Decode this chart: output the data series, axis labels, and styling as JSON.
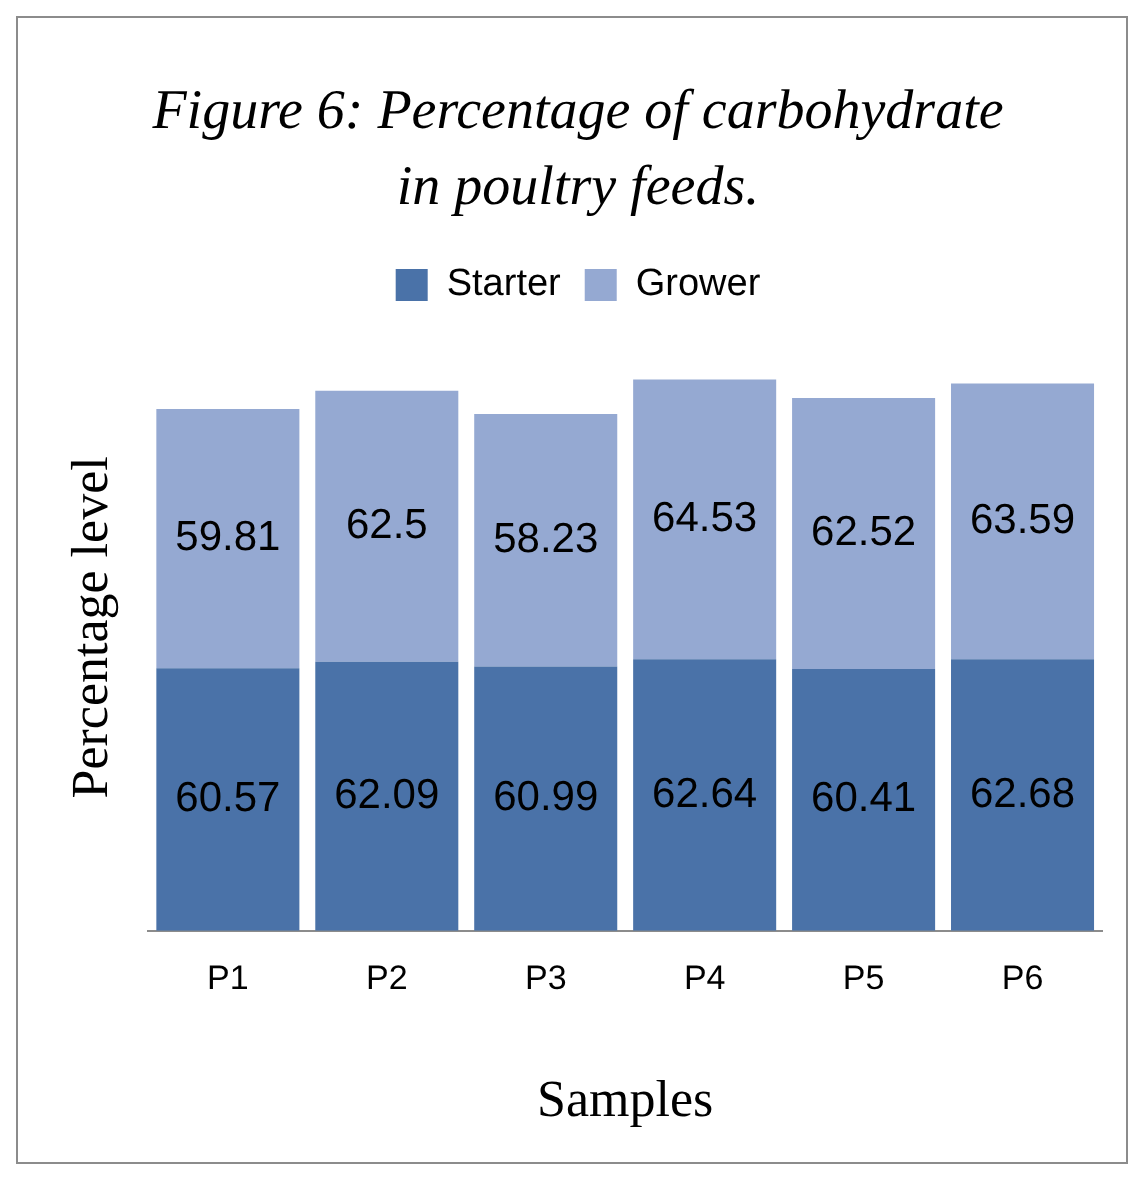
{
  "chart_data": {
    "type": "bar",
    "title": "Figure 6: Percentage of carbohydrate in poultry feeds.",
    "xlabel": "Samples",
    "ylabel": "Percentage level",
    "categories": [
      "P1",
      "P2",
      "P3",
      "P4",
      "P5",
      "P6"
    ],
    "stacked": true,
    "data_labels": true,
    "legend": "top",
    "grid": false,
    "tick_labels": "x",
    "series": [
      {
        "name": "Starter",
        "color": "#4a72a8",
        "values": [
          60.57,
          62.09,
          60.99,
          62.64,
          60.41,
          62.68
        ]
      },
      {
        "name": "Grower",
        "color": "#95a9d2",
        "values": [
          59.81,
          62.5,
          58.23,
          64.53,
          62.52,
          63.59
        ]
      }
    ]
  }
}
